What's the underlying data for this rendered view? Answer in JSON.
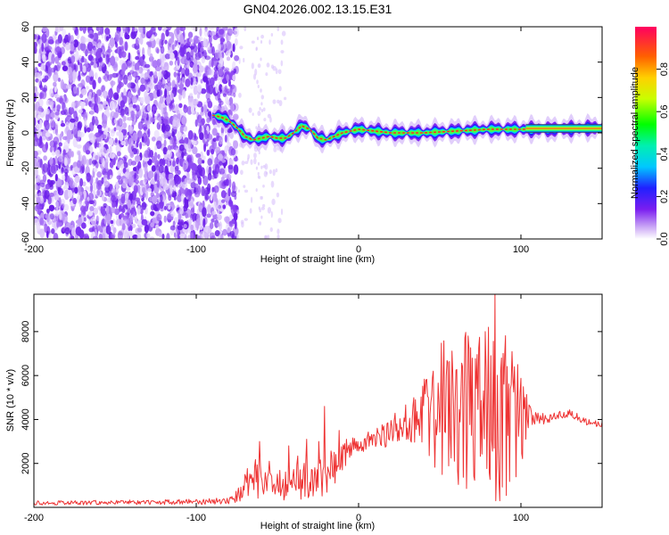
{
  "chart_data": [
    {
      "type": "heatmap",
      "title": "GN04.2026.002.13.15.E31",
      "xlabel": "Height of straight line (km)",
      "ylabel": "Frequency (Hz)",
      "xlim": [
        -200,
        150
      ],
      "ylim": [
        -60,
        60
      ],
      "x_ticks": [
        -200,
        -100,
        0,
        100
      ],
      "x_tick_labels": [
        "-200",
        "-100",
        "0",
        "100"
      ],
      "y_ticks": [
        -60,
        -40,
        -20,
        0,
        20,
        40,
        60
      ],
      "y_tick_labels": [
        "-60",
        "-40",
        "-20",
        "0",
        "20",
        "40",
        "60"
      ],
      "colorbar": {
        "label": "Normalized spectral amplitude",
        "range": [
          0,
          1
        ],
        "ticks": [
          0.0,
          0.2,
          0.4,
          0.6,
          0.8
        ],
        "tick_labels": [
          "0.0",
          "0.2",
          "0.4",
          "0.6",
          "0.8"
        ]
      },
      "ridge": {
        "x": [
          -90,
          -85,
          -80,
          -75,
          -70,
          -65,
          -60,
          -55,
          -50,
          -45,
          -40,
          -35,
          -30,
          -25,
          -20,
          -15,
          -10,
          -5,
          0,
          10,
          20,
          40,
          60,
          80,
          100,
          105,
          120,
          150
        ],
        "frequency": [
          10,
          9,
          7,
          3,
          -2,
          -4,
          -3,
          -2,
          -3,
          -3,
          0,
          4,
          2,
          -3,
          -4,
          -2,
          0,
          1,
          2,
          1,
          0,
          0,
          1,
          2,
          2,
          2,
          2,
          3
        ]
      },
      "noise_region": {
        "x_from": -200,
        "x_to": -75,
        "sparse_to": -45
      }
    },
    {
      "type": "line",
      "title": "",
      "xlabel": "Height of straight line (km)",
      "ylabel": "SNR (10 * v/v)",
      "xlim": [
        -200,
        150
      ],
      "ylim": [
        0,
        9700
      ],
      "x_ticks": [
        -200,
        -100,
        0,
        100
      ],
      "x_tick_labels": [
        "-200",
        "-100",
        "0",
        "100"
      ],
      "y_ticks": [
        2000,
        4000,
        6000,
        8000
      ],
      "y_tick_labels": [
        "2000",
        "4000",
        "6000",
        "8000"
      ],
      "color": "#ee3333",
      "envelope": {
        "x": [
          -200,
          -150,
          -100,
          -80,
          -75,
          -70,
          -65,
          -60,
          -55,
          -50,
          -45,
          -40,
          -35,
          -30,
          -25,
          -20,
          -15,
          -10,
          -5,
          0,
          10,
          20,
          30,
          40,
          50,
          60,
          70,
          80,
          85,
          90,
          100,
          105,
          110,
          120,
          130,
          140,
          150
        ],
        "base": [
          200,
          230,
          250,
          300,
          500,
          900,
          1400,
          1100,
          900,
          1000,
          1000,
          1400,
          1200,
          1400,
          1800,
          1500,
          1800,
          2300,
          2700,
          2800,
          3100,
          3500,
          3900,
          4100,
          4200,
          4100,
          4000,
          3700,
          3600,
          3700,
          4000,
          4100,
          4000,
          4100,
          4300,
          3900,
          3800
        ],
        "spread": [
          100,
          100,
          120,
          150,
          300,
          700,
          900,
          800,
          700,
          800,
          900,
          1100,
          1000,
          1100,
          1300,
          1100,
          800,
          700,
          500,
          400,
          500,
          700,
          900,
          1600,
          2200,
          2600,
          2800,
          3200,
          3400,
          2800,
          2200,
          600,
          300,
          200,
          200,
          150,
          150
        ],
        "peaks": [
          [
            -61,
            3000
          ],
          [
            -55,
            2100
          ],
          [
            -43,
            2800
          ],
          [
            -32,
            3100
          ],
          [
            -21,
            4600
          ],
          [
            -12,
            3500
          ],
          [
            35,
            4900
          ],
          [
            46,
            6200
          ],
          [
            55,
            6600
          ],
          [
            68,
            7200
          ],
          [
            78,
            8000
          ],
          [
            80,
            8200
          ],
          [
            84,
            9700
          ],
          [
            88,
            6800
          ],
          [
            96,
            6400
          ]
        ]
      }
    }
  ]
}
